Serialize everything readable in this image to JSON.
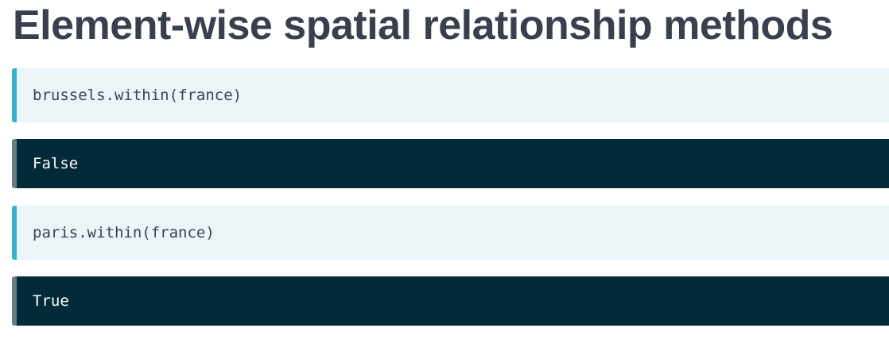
{
  "title": "Element-wise spatial relationship methods",
  "blocks": [
    {
      "kind": "code",
      "text": "brussels.within(france)"
    },
    {
      "kind": "output",
      "text": "False"
    },
    {
      "kind": "code",
      "text": "paris.within(france)"
    },
    {
      "kind": "output",
      "text": "True"
    }
  ],
  "colors": {
    "title": "#3a3f4e",
    "code_background": "#ebf4f7",
    "code_accent": "#37b1c9",
    "output_background": "#022a38",
    "output_accent": "#6c7c83"
  }
}
